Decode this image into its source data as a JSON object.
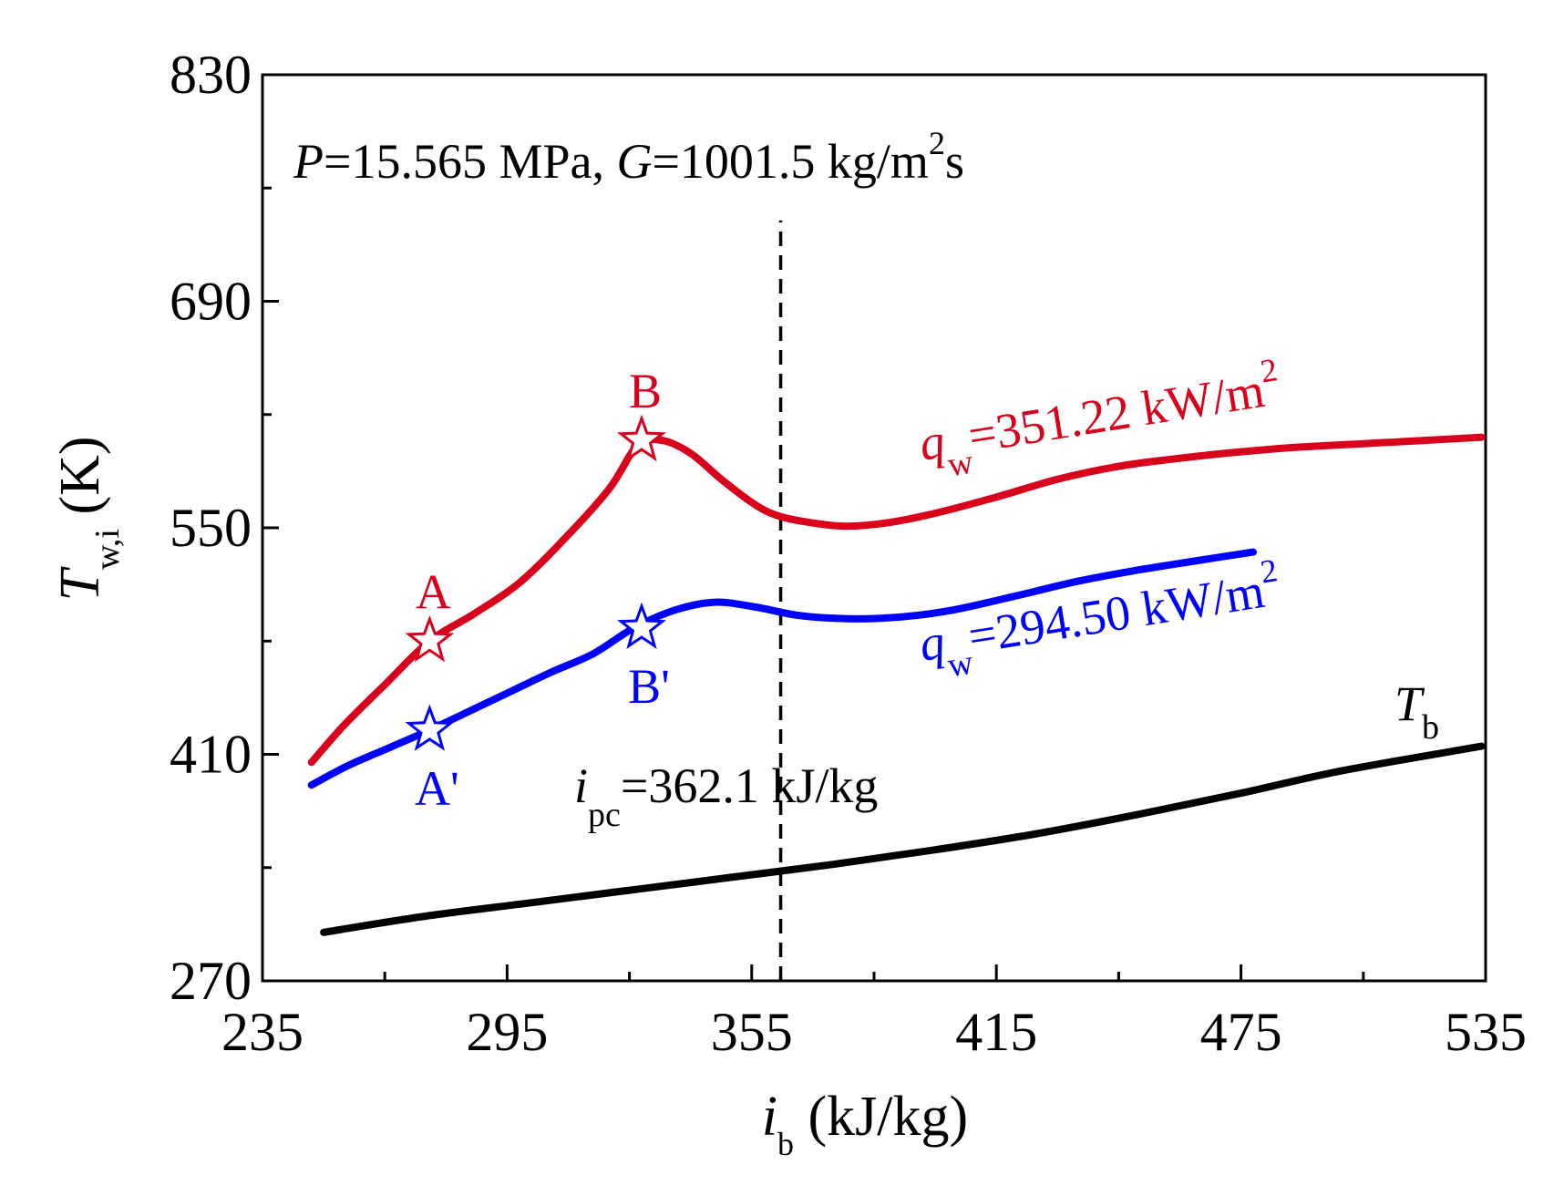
{
  "chart_data": {
    "type": "line",
    "title": "",
    "xlabel": {
      "main": "i",
      "sub": "b",
      "unit": " (kJ/kg)"
    },
    "ylabel": {
      "main": "T",
      "sub": "w,i",
      "unit": " (K)"
    },
    "xlim": [
      235,
      535
    ],
    "ylim": [
      270,
      830
    ],
    "x_ticks": [
      "235",
      "295",
      "355",
      "415",
      "475",
      "535"
    ],
    "y_ticks": [
      "270",
      "410",
      "550",
      "690",
      "830"
    ],
    "grid": false,
    "conditions": {
      "p_symbol": "P",
      "p_value": "=15.565 MPa, ",
      "g_symbol": "G",
      "g_value": "=1001.5 kg/m",
      "g_exp": "2",
      "g_tail": "s"
    },
    "pseudocritical": {
      "x": 362.1,
      "y_range": [
        270,
        740
      ],
      "label_main": "i",
      "label_sub": "pc",
      "label_value": "=362.1 kJ/kg"
    },
    "series": [
      {
        "name": "qw=351.22 kW/m2",
        "color": "#d9001b",
        "label_main": "q",
        "label_sub": "w",
        "label_value": "=351.22 kW/m",
        "label_exp": "2",
        "x": [
          247,
          255,
          265,
          276,
          287,
          298,
          309,
          320,
          327,
          333,
          340,
          348,
          356,
          362,
          370,
          378,
          388,
          400,
          415,
          430,
          445,
          460,
          475,
          490,
          505,
          520,
          534
        ],
        "y": [
          405,
          428,
          453,
          480,
          497,
          516,
          543,
          574,
          601,
          604,
          596,
          579,
          564,
          557,
          553,
          551,
          553,
          559,
          569,
          580,
          588,
          593,
          597,
          600,
          602,
          604,
          606
        ]
      },
      {
        "name": "qw=294.50 kW/m2",
        "color": "#0000ff",
        "label_main": "q",
        "label_sub": "w",
        "label_value": "=294.50 kW/m",
        "label_exp": "2",
        "x": [
          247,
          256,
          266,
          276,
          286,
          296,
          306,
          316,
          326,
          336,
          346,
          356,
          366,
          376,
          386,
          396,
          406,
          420,
          435,
          450,
          465,
          478
        ],
        "y": [
          391,
          403,
          414,
          425,
          437,
          449,
          461,
          472,
          488,
          499,
          504,
          501,
          496,
          494,
          494,
          496,
          500,
          508,
          517,
          524,
          530,
          535
        ]
      },
      {
        "name": "Tb",
        "color": "#000000",
        "label_main": "T",
        "label_sub": "b",
        "x": [
          250,
          275,
          300,
          325,
          350,
          375,
          400,
          425,
          450,
          475,
          500,
          534
        ],
        "y": [
          300,
          310,
          318,
          326,
          334,
          342,
          351,
          361,
          373,
          386,
          400,
          415
        ]
      }
    ],
    "markers": [
      {
        "label": "A",
        "series": 0,
        "x": 276,
        "y": 480,
        "color": "#d9001b",
        "label_pos": "above"
      },
      {
        "label": "B",
        "series": 0,
        "x": 328,
        "y": 604,
        "color": "#d9001b",
        "label_pos": "above"
      },
      {
        "label": "A'",
        "series": 1,
        "x": 276,
        "y": 425,
        "color": "#0000ff",
        "label_pos": "below"
      },
      {
        "label": "B'",
        "series": 1,
        "x": 328,
        "y": 488,
        "color": "#0000ff",
        "label_pos": "below"
      }
    ]
  }
}
